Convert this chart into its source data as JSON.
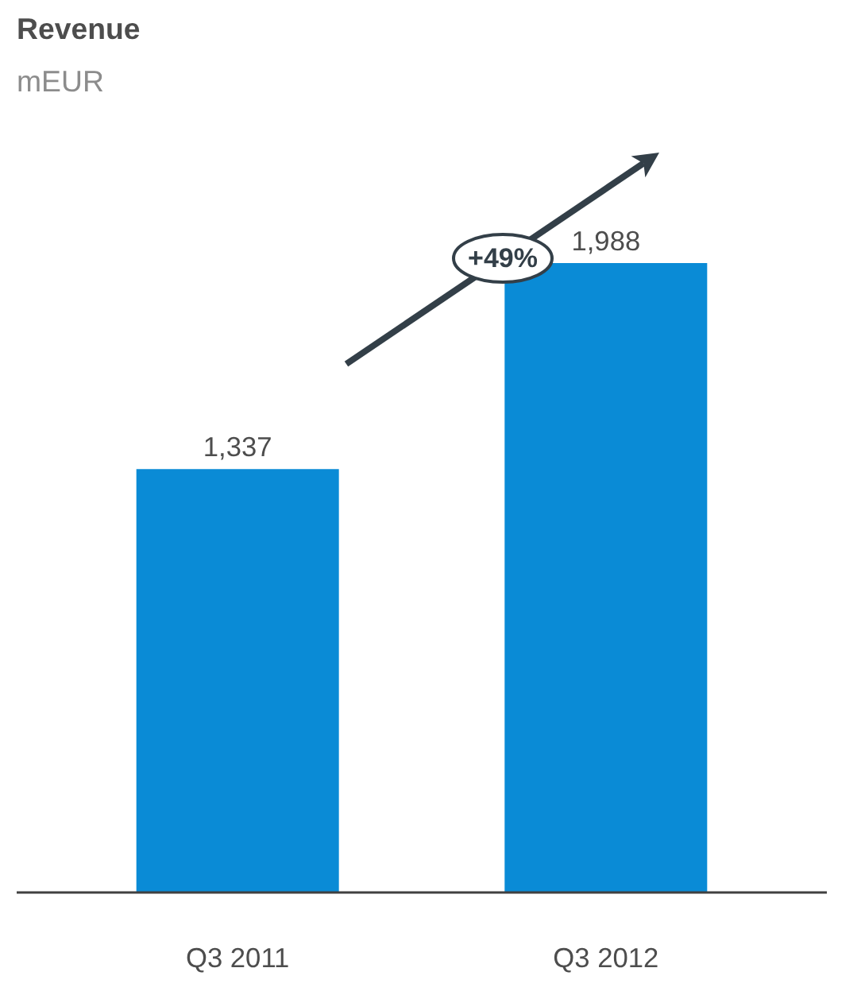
{
  "chart_data": {
    "type": "bar",
    "title": "Revenue",
    "subtitle": "mEUR",
    "categories": [
      "Q3 2011",
      "Q3 2012"
    ],
    "values": [
      1337,
      1988
    ],
    "color": "#0a8bd6",
    "value_labels": [
      "1,337",
      "1,988"
    ],
    "grid": false,
    "tick_labels": "x",
    "annotations": [
      "+49%"
    ]
  }
}
